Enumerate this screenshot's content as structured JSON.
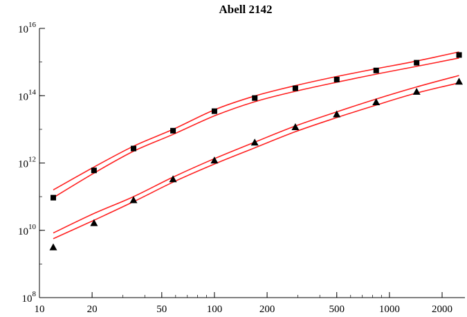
{
  "chart_data": {
    "type": "scatter",
    "title": "Abell 2142",
    "xlabel": "",
    "ylabel": "",
    "xscale": "log",
    "yscale": "log",
    "xlim": [
      10,
      2700
    ],
    "ylim_exponent": [
      8,
      16
    ],
    "x_ticks": [
      {
        "value": 10,
        "label": "10"
      },
      {
        "value": 20,
        "label": "20"
      },
      {
        "value": 50,
        "label": "50"
      },
      {
        "value": 100,
        "label": "100"
      },
      {
        "value": 200,
        "label": "200"
      },
      {
        "value": 500,
        "label": "500"
      },
      {
        "value": 1000,
        "label": "1000"
      },
      {
        "value": 2000,
        "label": "2000"
      }
    ],
    "y_ticks": [
      {
        "exponent": 8,
        "base": "10",
        "exp": "8"
      },
      {
        "exponent": 10,
        "base": "10",
        "exp": "10"
      },
      {
        "exponent": 12,
        "base": "10",
        "exp": "12"
      },
      {
        "exponent": 14,
        "base": "10",
        "exp": "14"
      },
      {
        "exponent": 16,
        "base": "10",
        "exp": "16"
      }
    ],
    "colors": {
      "model": "#ff2020",
      "points": "#000000"
    },
    "series": [
      {
        "marker": "square",
        "x": [
          12,
          20.5,
          34.5,
          58,
          100,
          170,
          290,
          500,
          840,
          1430,
          2500
        ],
        "y_log10": [
          10.97,
          11.78,
          12.43,
          12.96,
          13.54,
          13.93,
          14.22,
          14.48,
          14.75,
          14.98,
          15.21
        ],
        "band_x": [
          12,
          20.5,
          34.5,
          58,
          100,
          170,
          290,
          500,
          840,
          1430,
          2500
        ],
        "band_upper_log10": [
          11.2,
          11.88,
          12.5,
          13.0,
          13.58,
          13.99,
          14.3,
          14.57,
          14.8,
          15.03,
          15.3
        ],
        "band_lower_log10": [
          10.97,
          11.7,
          12.35,
          12.85,
          13.4,
          13.82,
          14.13,
          14.4,
          14.64,
          14.87,
          15.12
        ]
      },
      {
        "marker": "triangle",
        "x": [
          12,
          20.5,
          34.5,
          58,
          100,
          170,
          290,
          500,
          840,
          1430,
          2500
        ],
        "y_log10": [
          9.5,
          10.22,
          10.9,
          11.52,
          12.08,
          12.61,
          13.07,
          13.45,
          13.81,
          14.12,
          14.42
        ],
        "band_x": [
          12,
          20.5,
          34.5,
          58,
          100,
          170,
          290,
          500,
          840,
          1430,
          2500
        ],
        "band_upper_log10": [
          9.92,
          10.5,
          11.0,
          11.58,
          12.13,
          12.62,
          13.1,
          13.52,
          13.9,
          14.26,
          14.6
        ],
        "band_lower_log10": [
          9.75,
          10.3,
          10.85,
          11.43,
          11.97,
          12.45,
          12.93,
          13.35,
          13.72,
          14.08,
          14.38
        ]
      }
    ]
  }
}
